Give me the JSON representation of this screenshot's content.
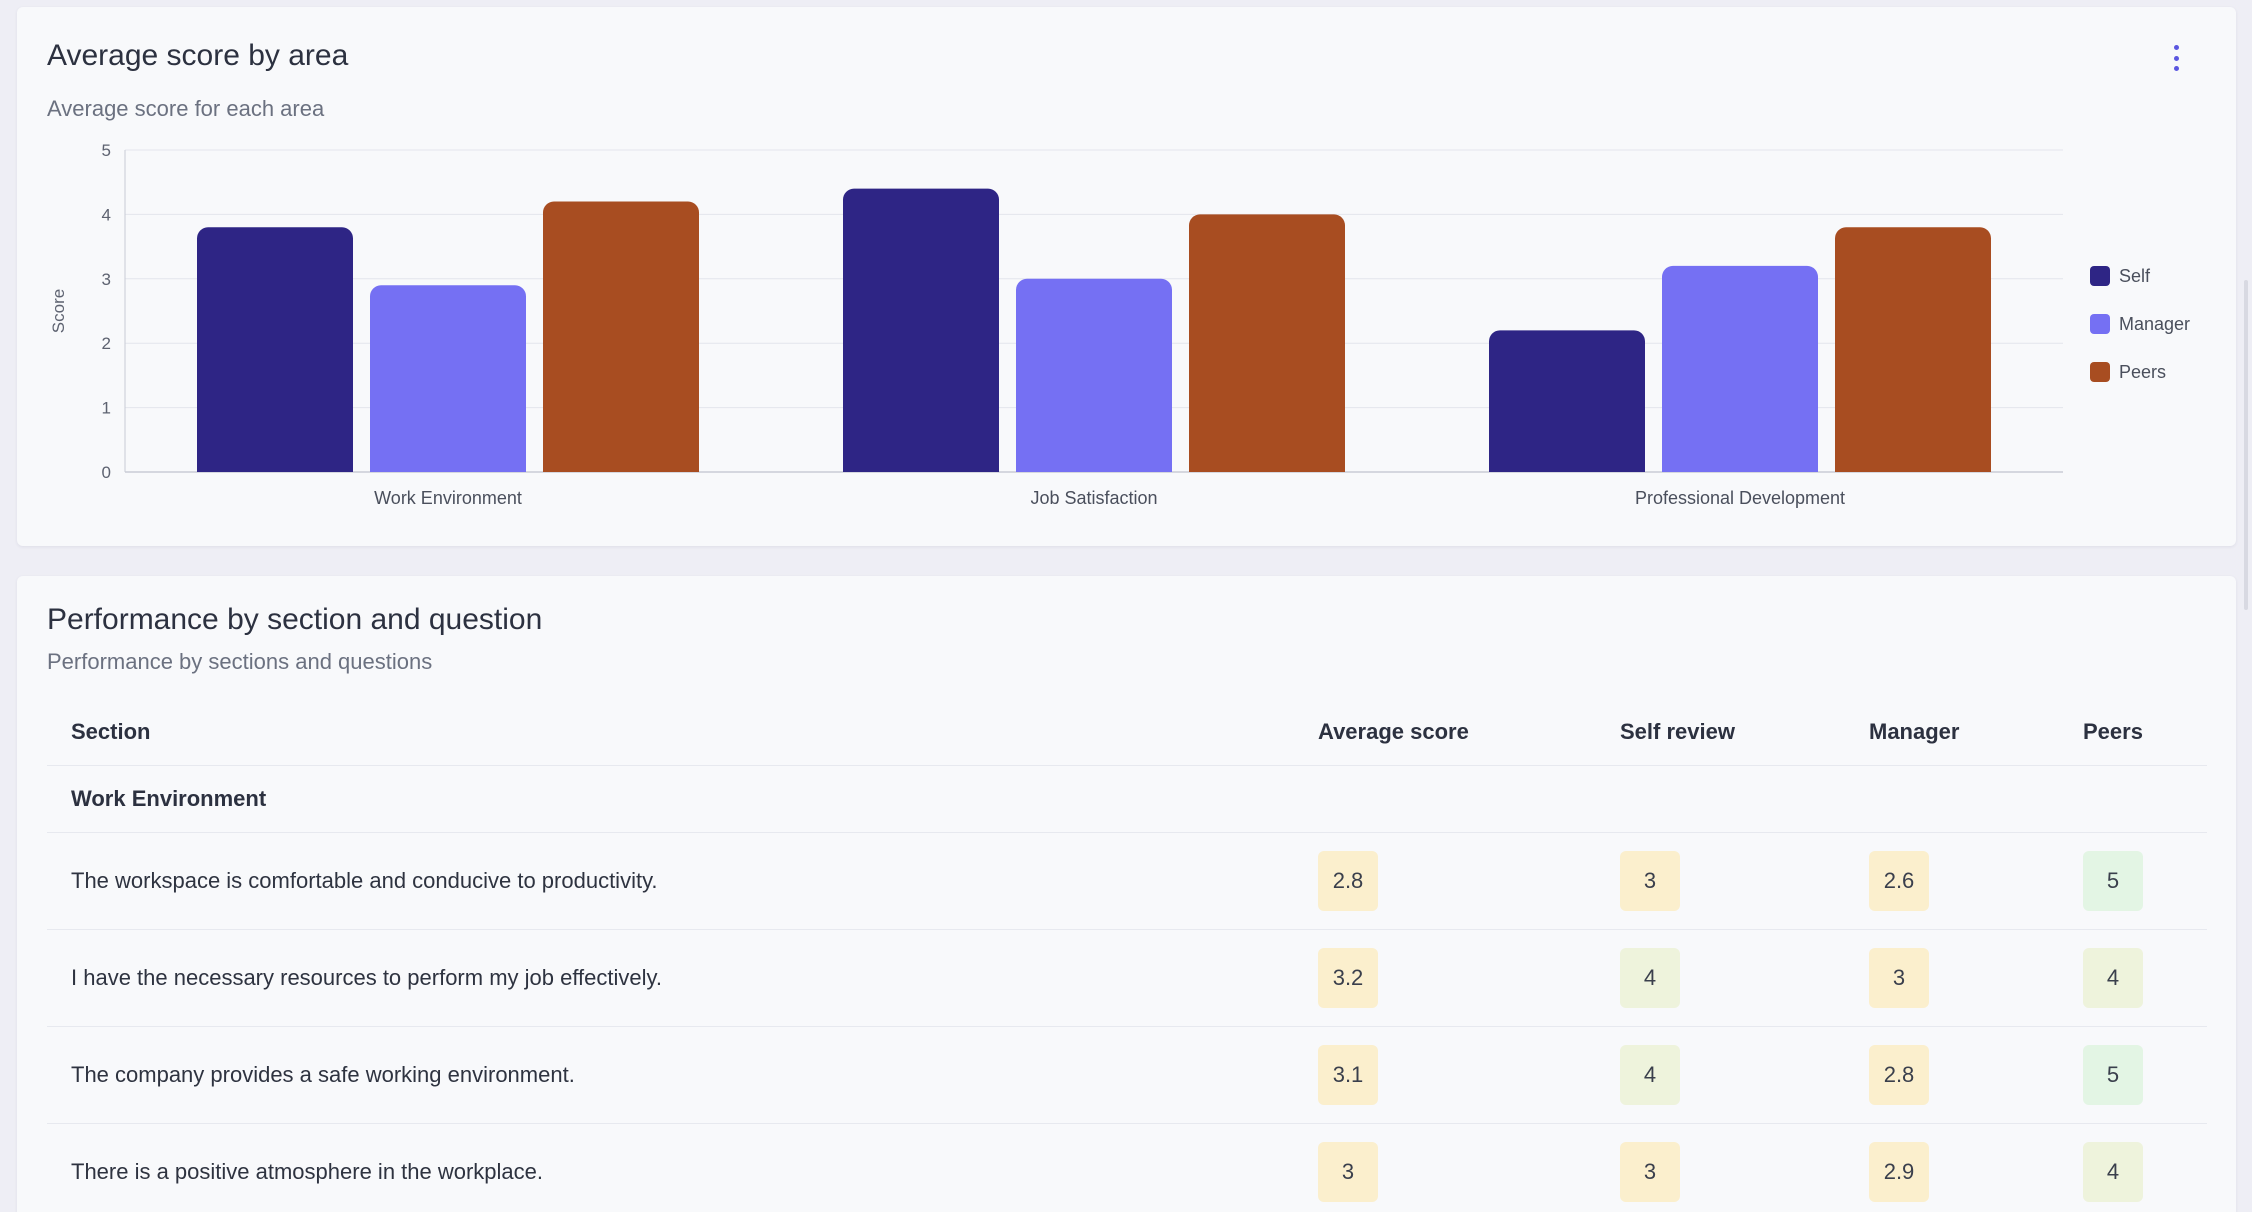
{
  "chart_card": {
    "title": "Average score by area",
    "subtitle": "Average score for each area",
    "menu_icon": "kebab-vertical-icon"
  },
  "chart_data": {
    "type": "bar",
    "title": "Average score by area",
    "subtitle": "Average score for each area",
    "categories": [
      "Work Environment",
      "Job Satisfaction",
      "Professional Development"
    ],
    "series": [
      {
        "name": "Self",
        "color": "#2e2585",
        "values": [
          3.8,
          4.4,
          2.2
        ]
      },
      {
        "name": "Manager",
        "color": "#7570f3",
        "values": [
          2.9,
          3.0,
          3.2
        ]
      },
      {
        "name": "Peers",
        "color": "#a84d21",
        "values": [
          4.2,
          4.0,
          3.8
        ]
      }
    ],
    "ylabel": "Score",
    "xlabel": "",
    "ylim": [
      0,
      5
    ],
    "yticks": [
      "0",
      "1",
      "2",
      "3",
      "4",
      "5"
    ],
    "grid": true,
    "legend_position": "right"
  },
  "table_card": {
    "title": "Performance by section and question",
    "subtitle": "Performance by sections and questions",
    "headers": {
      "section": "Section",
      "avg": "Average score",
      "self": "Self review",
      "manager": "Manager",
      "peers": "Peers"
    },
    "sections": [
      {
        "name": "Work Environment",
        "rows": [
          {
            "question": "The workspace is comfortable and conducive to productivity.",
            "avg": "2.8",
            "self": "3",
            "manager": "2.6",
            "peers": "5"
          },
          {
            "question": "I have the necessary resources to perform my job effectively.",
            "avg": "3.2",
            "self": "4",
            "manager": "3",
            "peers": "4"
          },
          {
            "question": "The company provides a safe working environment.",
            "avg": "3.1",
            "self": "4",
            "manager": "2.8",
            "peers": "5"
          },
          {
            "question": "There is a positive atmosphere in the workplace.",
            "avg": "3",
            "self": "3",
            "manager": "2.9",
            "peers": "4"
          }
        ]
      }
    ],
    "badge_colors": {
      "mid": "#fbefcd",
      "good": "#eef3dc",
      "best": "#e3f5e4"
    }
  }
}
